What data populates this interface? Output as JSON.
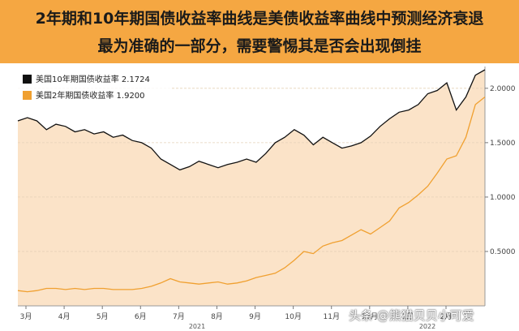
{
  "title": {
    "line1": "2年期和10年期国债收益率曲线是美债收益率曲线中预测经济衰退",
    "line2": "最为准确的一部分，需要警惕其是否会出现倒挂"
  },
  "legend": {
    "items": [
      {
        "label": "美国10年期国债收益率 2.1724",
        "color": "#111111"
      },
      {
        "label": "美国2年期国债收益率 1.9200",
        "color": "#f0a030"
      }
    ]
  },
  "watermark": "头条 @熊猫贝贝小可爱",
  "colors": {
    "accent": "#f5a742",
    "fill": "#fbe3c8",
    "line10": "#111111",
    "line2": "#f0a030"
  },
  "chart_data": {
    "type": "line",
    "ylim": [
      0,
      2.2
    ],
    "yticks": [
      "0.5000",
      "1.0000",
      "1.5000",
      "2.0000"
    ],
    "ytick_values": [
      0.5,
      1.0,
      1.5,
      2.0
    ],
    "xticks": [
      "3月",
      "4月",
      "5月",
      "6月",
      "7月",
      "8月",
      "9月",
      "10月",
      "11月",
      "12月",
      "1月",
      "2月"
    ],
    "year_labels": [
      "2021",
      "2022"
    ],
    "series": [
      {
        "name": "美国10年期国债收益率",
        "values": [
          1.7,
          1.73,
          1.7,
          1.62,
          1.67,
          1.65,
          1.6,
          1.62,
          1.58,
          1.6,
          1.55,
          1.57,
          1.52,
          1.5,
          1.45,
          1.35,
          1.3,
          1.25,
          1.28,
          1.33,
          1.3,
          1.27,
          1.3,
          1.32,
          1.35,
          1.32,
          1.4,
          1.5,
          1.55,
          1.62,
          1.57,
          1.48,
          1.55,
          1.5,
          1.45,
          1.47,
          1.5,
          1.56,
          1.65,
          1.72,
          1.78,
          1.8,
          1.85,
          1.95,
          1.98,
          2.05,
          1.8,
          1.92,
          2.12,
          2.17
        ]
      },
      {
        "name": "美国2年期国债收益率",
        "values": [
          0.14,
          0.13,
          0.14,
          0.16,
          0.16,
          0.15,
          0.16,
          0.15,
          0.16,
          0.16,
          0.15,
          0.15,
          0.15,
          0.16,
          0.18,
          0.21,
          0.25,
          0.22,
          0.21,
          0.2,
          0.21,
          0.22,
          0.2,
          0.21,
          0.23,
          0.26,
          0.28,
          0.3,
          0.35,
          0.42,
          0.5,
          0.48,
          0.55,
          0.58,
          0.6,
          0.65,
          0.7,
          0.66,
          0.72,
          0.78,
          0.9,
          0.95,
          1.02,
          1.1,
          1.22,
          1.35,
          1.38,
          1.55,
          1.85,
          1.92
        ]
      }
    ]
  }
}
